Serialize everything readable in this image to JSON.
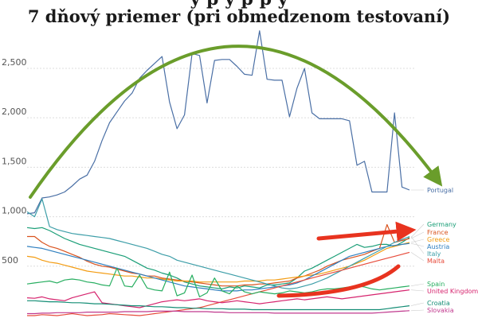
{
  "title": "7 dňový priemer (pri obmedzenom testovaní)",
  "title_partial": "y p           y        p  p             y",
  "chart_data": {
    "type": "line",
    "ylim": [
      0,
      2950
    ],
    "yticks": [
      {
        "value": 500,
        "label": "500"
      },
      {
        "value": 1000,
        "label": "1,000"
      },
      {
        "value": 1500,
        "label": "1,500"
      },
      {
        "value": 2000,
        "label": "2,000"
      },
      {
        "value": 2500,
        "label": "2,500"
      }
    ],
    "grid": true,
    "n_points": 52,
    "series": [
      {
        "name": "Portugal",
        "color": "#4a6fa5",
        "values": [
          1030,
          1040,
          1190,
          1200,
          1220,
          1250,
          1310,
          1380,
          1420,
          1560,
          1770,
          1950,
          2060,
          2170,
          2250,
          2400,
          2480,
          2550,
          2620,
          2160,
          1890,
          2030,
          2650,
          2630,
          2150,
          2580,
          2590,
          2590,
          2520,
          2440,
          2430,
          2880,
          2390,
          2380,
          2380,
          2010,
          2300,
          2500,
          2050,
          1990,
          1990,
          1990,
          1990,
          1970,
          1520,
          1560,
          1250,
          1250,
          1250,
          2050,
          1300,
          1270
        ]
      },
      {
        "name": "Germany",
        "color": "#1a9e77",
        "values": [
          890,
          880,
          890,
          860,
          820,
          780,
          750,
          720,
          700,
          680,
          660,
          640,
          620,
          600,
          560,
          520,
          480,
          460,
          430,
          410,
          380,
          340,
          320,
          300,
          290,
          280,
          270,
          290,
          280,
          300,
          290,
          280,
          310,
          310,
          320,
          330,
          380,
          450,
          480,
          520,
          560,
          600,
          640,
          680,
          720,
          690,
          700,
          720,
          720,
          700,
          740,
          790
        ]
      },
      {
        "name": "France",
        "color": "#d9531e",
        "values": [
          800,
          800,
          740,
          700,
          680,
          650,
          620,
          590,
          550,
          520,
          500,
          490,
          470,
          450,
          430,
          420,
          400,
          400,
          380,
          370,
          360,
          350,
          340,
          330,
          320,
          310,
          300,
          300,
          300,
          310,
          310,
          320,
          320,
          330,
          340,
          350,
          380,
          400,
          430,
          460,
          500,
          530,
          560,
          580,
          600,
          620,
          650,
          680,
          920,
          740,
          760,
          780
        ]
      },
      {
        "name": "Greece",
        "color": "#f39c12",
        "values": [
          600,
          590,
          560,
          540,
          530,
          510,
          490,
          470,
          450,
          440,
          430,
          420,
          410,
          400,
          400,
          390,
          380,
          380,
          370,
          360,
          350,
          350,
          350,
          340,
          340,
          340,
          340,
          340,
          340,
          350,
          350,
          350,
          360,
          360,
          370,
          380,
          390,
          400,
          410,
          420,
          440,
          460,
          480,
          500,
          530,
          560,
          600,
          640,
          680,
          700,
          720,
          740
        ]
      },
      {
        "name": "Austria",
        "color": "#2f7fbf",
        "values": [
          700,
          690,
          680,
          660,
          640,
          620,
          600,
          580,
          560,
          540,
          520,
          500,
          480,
          460,
          440,
          420,
          400,
          380,
          360,
          340,
          320,
          300,
          290,
          280,
          270,
          260,
          250,
          250,
          250,
          260,
          260,
          270,
          280,
          290,
          300,
          310,
          330,
          360,
          400,
          440,
          480,
          520,
          560,
          600,
          620,
          640,
          660,
          680,
          700,
          710,
          720,
          730
        ]
      },
      {
        "name": "Italy",
        "color": "#3d9ea8",
        "values": [
          1050,
          1000,
          1180,
          900,
          870,
          850,
          830,
          820,
          810,
          800,
          790,
          780,
          760,
          740,
          720,
          700,
          680,
          650,
          620,
          600,
          560,
          540,
          520,
          500,
          480,
          460,
          440,
          420,
          400,
          380,
          360,
          340,
          320,
          300,
          280,
          270,
          280,
          300,
          320,
          350,
          380,
          420,
          460,
          500,
          540,
          580,
          620,
          660,
          700,
          740,
          770,
          800
        ]
      },
      {
        "name": "Malta",
        "color": "#e74c3c",
        "values": [
          0,
          0,
          10,
          5,
          0,
          10,
          20,
          10,
          0,
          5,
          10,
          20,
          15,
          10,
          5,
          0,
          10,
          20,
          30,
          40,
          50,
          60,
          70,
          80,
          100,
          120,
          140,
          160,
          180,
          200,
          220,
          240,
          260,
          280,
          300,
          320,
          340,
          360,
          380,
          400,
          420,
          440,
          460,
          480,
          500,
          520,
          540,
          560,
          580,
          600,
          620,
          640
        ]
      },
      {
        "name": "Spain",
        "color": "#27ae60",
        "values": [
          320,
          330,
          340,
          350,
          330,
          360,
          370,
          360,
          340,
          330,
          310,
          300,
          480,
          300,
          290,
          410,
          280,
          260,
          250,
          440,
          200,
          230,
          410,
          190,
          230,
          380,
          250,
          220,
          300,
          240,
          220,
          240,
          230,
          220,
          230,
          250,
          240,
          230,
          240,
          260,
          270,
          270,
          280,
          290,
          300,
          290,
          270,
          260,
          270,
          280,
          290,
          300
        ]
      },
      {
        "name": "United Kingdom",
        "color": "#d6246e",
        "values": [
          180,
          175,
          190,
          170,
          160,
          150,
          180,
          200,
          220,
          240,
          130,
          120,
          110,
          100,
          90,
          80,
          100,
          120,
          140,
          150,
          160,
          150,
          160,
          170,
          150,
          140,
          130,
          140,
          150,
          140,
          130,
          120,
          130,
          140,
          150,
          160,
          170,
          160,
          170,
          180,
          190,
          180,
          170,
          180,
          190,
          200,
          210,
          220,
          230,
          240,
          250,
          260
        ]
      },
      {
        "name": "Croatia",
        "color": "#138d75",
        "values": [
          150,
          150,
          145,
          140,
          140,
          135,
          130,
          130,
          125,
          120,
          120,
          115,
          110,
          105,
          100,
          100,
          95,
          90,
          90,
          85,
          80,
          80,
          75,
          75,
          70,
          70,
          70,
          65,
          65,
          65,
          60,
          60,
          60,
          60,
          60,
          60,
          60,
          60,
          60,
          60,
          60,
          60,
          60,
          60,
          60,
          60,
          60,
          60,
          70,
          80,
          90,
          100
        ]
      },
      {
        "name": "Slovakia",
        "color": "#c0398e",
        "values": [
          20,
          20,
          25,
          25,
          30,
          30,
          30,
          30,
          35,
          35,
          35,
          35,
          35,
          40,
          40,
          40,
          40,
          45,
          45,
          45,
          45,
          40,
          40,
          40,
          40,
          35,
          35,
          30,
          30,
          30,
          30,
          30,
          30,
          25,
          25,
          25,
          25,
          25,
          25,
          25,
          25,
          25,
          25,
          25,
          25,
          25,
          25,
          30,
          35,
          40,
          45,
          50
        ]
      }
    ]
  },
  "annotations": {
    "arch_color": "#6a9d2b",
    "rise_arrow_color": "#e8331f"
  }
}
